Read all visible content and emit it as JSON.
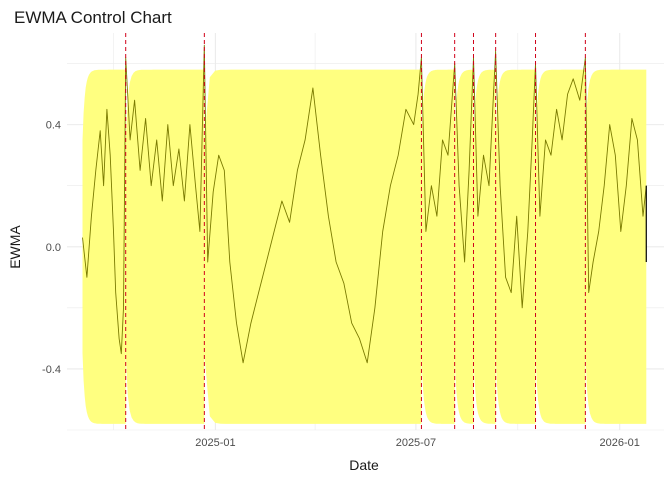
{
  "chart_data": {
    "type": "line",
    "title": "EWMA Control Chart",
    "xlabel": "Date",
    "ylabel": "EWMA",
    "xlim": [
      "2024-08-20",
      "2026-02-10"
    ],
    "ylim": [
      -0.6,
      0.7
    ],
    "x_ticks": [
      "2025-01",
      "2025-07",
      "2026-01"
    ],
    "x_tick_dates": [
      "2025-01-01",
      "2025-07-01",
      "2026-01-01"
    ],
    "y_ticks": [
      -0.4,
      0.0,
      0.4
    ],
    "y_tick_labels": [
      "-0.4",
      "0.0",
      "0.4"
    ],
    "grid": true,
    "colors": {
      "control_band": "#ffff80",
      "ewma_line": "#7a7a00",
      "reset_line": "#d0021b",
      "grid": "#ebebeb"
    },
    "reset_dates": [
      "2024-10-12",
      "2024-12-22",
      "2025-07-06",
      "2025-08-05",
      "2025-08-22",
      "2025-09-11",
      "2025-10-17",
      "2025-12-01"
    ],
    "control_limit": 0.58,
    "band_segments": [
      {
        "start": "2024-09-03",
        "end": "2024-10-12"
      },
      {
        "start": "2024-10-12",
        "end": "2024-12-22"
      },
      {
        "start": "2024-12-22",
        "end": "2025-07-06"
      },
      {
        "start": "2025-07-06",
        "end": "2025-08-05"
      },
      {
        "start": "2025-08-05",
        "end": "2025-08-22"
      },
      {
        "start": "2025-08-22",
        "end": "2025-09-11"
      },
      {
        "start": "2025-09-11",
        "end": "2025-10-17"
      },
      {
        "start": "2025-10-17",
        "end": "2025-12-01"
      },
      {
        "start": "2025-12-01",
        "end": "2026-01-25"
      }
    ],
    "series": [
      {
        "values": [
          [
            "2024-09-03",
            0.03
          ],
          [
            "2024-09-07",
            -0.1
          ],
          [
            "2024-09-11",
            0.1
          ],
          [
            "2024-09-15",
            0.25
          ],
          [
            "2024-09-19",
            0.38
          ],
          [
            "2024-09-22",
            0.2
          ],
          [
            "2024-09-25",
            0.45
          ],
          [
            "2024-09-28",
            0.3
          ],
          [
            "2024-10-01",
            0.05
          ],
          [
            "2024-10-03",
            -0.15
          ],
          [
            "2024-10-06",
            -0.3
          ],
          [
            "2024-10-08",
            -0.35
          ],
          [
            "2024-10-10",
            -0.2
          ],
          [
            "2024-10-12",
            0.62
          ],
          [
            "2024-10-16",
            0.35
          ],
          [
            "2024-10-20",
            0.48
          ],
          [
            "2024-10-25",
            0.25
          ],
          [
            "2024-10-30",
            0.42
          ],
          [
            "2024-11-04",
            0.2
          ],
          [
            "2024-11-09",
            0.35
          ],
          [
            "2024-11-14",
            0.15
          ],
          [
            "2024-11-19",
            0.4
          ],
          [
            "2024-11-24",
            0.2
          ],
          [
            "2024-11-29",
            0.32
          ],
          [
            "2024-12-04",
            0.15
          ],
          [
            "2024-12-09",
            0.4
          ],
          [
            "2024-12-14",
            0.2
          ],
          [
            "2024-12-18",
            0.05
          ],
          [
            "2024-12-22",
            0.66
          ],
          [
            "2024-12-25",
            -0.05
          ],
          [
            "2024-12-30",
            0.18
          ],
          [
            "2025-01-04",
            0.3
          ],
          [
            "2025-01-09",
            0.25
          ],
          [
            "2025-01-14",
            -0.05
          ],
          [
            "2025-01-20",
            -0.25
          ],
          [
            "2025-01-26",
            -0.38
          ],
          [
            "2025-02-02",
            -0.25
          ],
          [
            "2025-02-09",
            -0.15
          ],
          [
            "2025-02-16",
            -0.05
          ],
          [
            "2025-02-23",
            0.05
          ],
          [
            "2025-03-02",
            0.15
          ],
          [
            "2025-03-09",
            0.08
          ],
          [
            "2025-03-16",
            0.25
          ],
          [
            "2025-03-23",
            0.35
          ],
          [
            "2025-03-30",
            0.52
          ],
          [
            "2025-04-06",
            0.3
          ],
          [
            "2025-04-13",
            0.1
          ],
          [
            "2025-04-20",
            -0.05
          ],
          [
            "2025-04-27",
            -0.12
          ],
          [
            "2025-05-04",
            -0.25
          ],
          [
            "2025-05-11",
            -0.3
          ],
          [
            "2025-05-18",
            -0.38
          ],
          [
            "2025-05-25",
            -0.2
          ],
          [
            "2025-06-01",
            0.05
          ],
          [
            "2025-06-08",
            0.2
          ],
          [
            "2025-06-15",
            0.3
          ],
          [
            "2025-06-22",
            0.45
          ],
          [
            "2025-06-29",
            0.4
          ],
          [
            "2025-07-03",
            0.5
          ],
          [
            "2025-07-06",
            0.62
          ],
          [
            "2025-07-10",
            0.05
          ],
          [
            "2025-07-15",
            0.2
          ],
          [
            "2025-07-20",
            0.1
          ],
          [
            "2025-07-25",
            0.35
          ],
          [
            "2025-07-30",
            0.3
          ],
          [
            "2025-08-05",
            0.6
          ],
          [
            "2025-08-09",
            0.2
          ],
          [
            "2025-08-14",
            -0.05
          ],
          [
            "2025-08-18",
            0.25
          ],
          [
            "2025-08-22",
            0.62
          ],
          [
            "2025-08-26",
            0.1
          ],
          [
            "2025-08-31",
            0.3
          ],
          [
            "2025-09-05",
            0.2
          ],
          [
            "2025-09-11",
            0.64
          ],
          [
            "2025-09-15",
            0.2
          ],
          [
            "2025-09-20",
            -0.1
          ],
          [
            "2025-09-25",
            -0.15
          ],
          [
            "2025-09-30",
            0.1
          ],
          [
            "2025-10-05",
            -0.2
          ],
          [
            "2025-10-10",
            0.05
          ],
          [
            "2025-10-14",
            0.35
          ],
          [
            "2025-10-17",
            0.6
          ],
          [
            "2025-10-21",
            0.1
          ],
          [
            "2025-10-26",
            0.35
          ],
          [
            "2025-10-31",
            0.3
          ],
          [
            "2025-11-05",
            0.45
          ],
          [
            "2025-11-10",
            0.35
          ],
          [
            "2025-11-15",
            0.5
          ],
          [
            "2025-11-20",
            0.55
          ],
          [
            "2025-11-26",
            0.48
          ],
          [
            "2025-12-01",
            0.62
          ],
          [
            "2025-12-04",
            -0.15
          ],
          [
            "2025-12-08",
            -0.05
          ],
          [
            "2025-12-13",
            0.05
          ],
          [
            "2025-12-18",
            0.2
          ],
          [
            "2025-12-23",
            0.4
          ],
          [
            "2025-12-28",
            0.3
          ],
          [
            "2026-01-02",
            0.05
          ],
          [
            "2026-01-07",
            0.2
          ],
          [
            "2026-01-12",
            0.42
          ],
          [
            "2026-01-17",
            0.35
          ],
          [
            "2026-01-22",
            0.1
          ],
          [
            "2026-01-25",
            0.2
          ]
        ]
      }
    ]
  }
}
